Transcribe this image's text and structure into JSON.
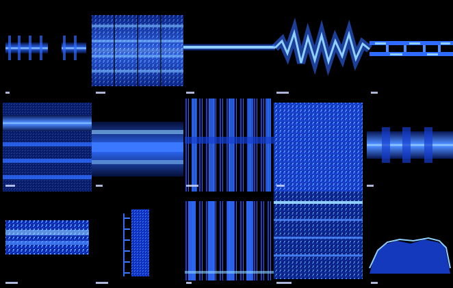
{
  "colors": {
    "background": "#000000",
    "signal_bright": "#8fd0ff",
    "signal_mid": "#2f6bff",
    "signal_deep": "#0b1f8a"
  }
}
